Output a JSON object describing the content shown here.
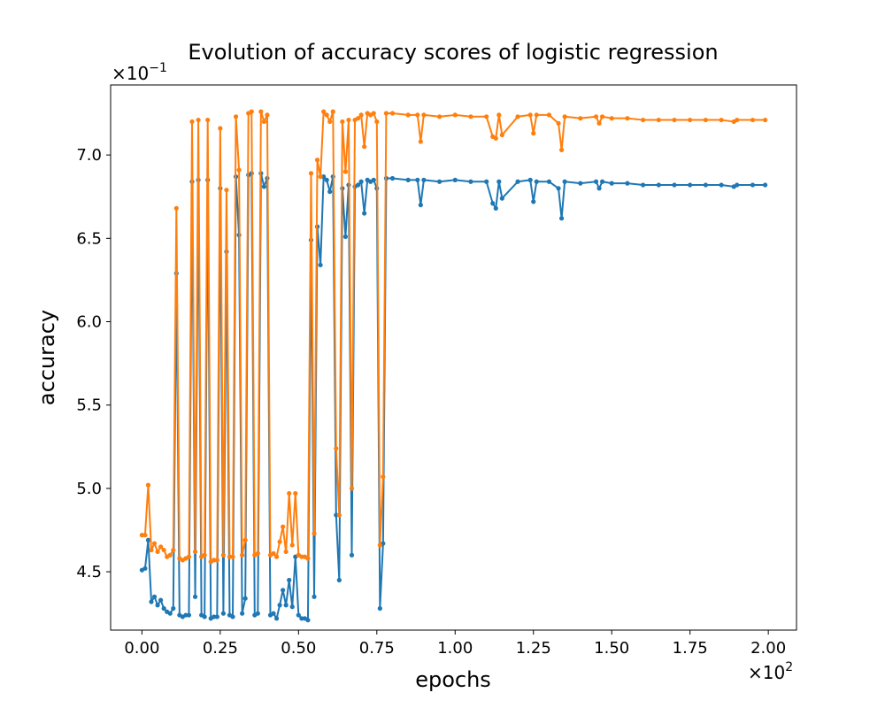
{
  "chart_data": {
    "type": "line",
    "title": "Evolution of accuracy scores of logistic regression",
    "xlabel": "epochs",
    "ylabel": "accuracy",
    "x_offset_label": "×10",
    "x_offset_exp": "2",
    "y_offset_label": "×10",
    "y_offset_exp": "−1",
    "xlim": [
      -0.1,
      2.09
    ],
    "ylim": [
      4.15,
      7.42
    ],
    "x_ticks": [
      0.0,
      0.25,
      0.5,
      0.75,
      1.0,
      1.25,
      1.5,
      1.75,
      2.0
    ],
    "x_tick_labels": [
      "0.00",
      "0.25",
      "0.50",
      "0.75",
      "1.00",
      "1.25",
      "1.50",
      "1.75",
      "2.00"
    ],
    "y_ticks": [
      4.5,
      5.0,
      5.5,
      6.0,
      6.5,
      7.0
    ],
    "y_tick_labels": [
      "4.5",
      "5.0",
      "5.5",
      "6.0",
      "6.5",
      "7.0"
    ],
    "grid": false,
    "legend": "none",
    "series": [
      {
        "color": "#1f77b4",
        "x": [
          0.0,
          0.01,
          0.02,
          0.03,
          0.04,
          0.05,
          0.06,
          0.07,
          0.08,
          0.09,
          0.1,
          0.11,
          0.12,
          0.13,
          0.14,
          0.15,
          0.16,
          0.17,
          0.18,
          0.19,
          0.2,
          0.21,
          0.22,
          0.23,
          0.24,
          0.25,
          0.26,
          0.27,
          0.28,
          0.29,
          0.3,
          0.31,
          0.32,
          0.33,
          0.34,
          0.35,
          0.36,
          0.37,
          0.38,
          0.39,
          0.4,
          0.41,
          0.42,
          0.43,
          0.44,
          0.45,
          0.46,
          0.47,
          0.48,
          0.49,
          0.5,
          0.51,
          0.52,
          0.53,
          0.54,
          0.55,
          0.56,
          0.57,
          0.58,
          0.59,
          0.6,
          0.61,
          0.62,
          0.63,
          0.64,
          0.65,
          0.66,
          0.67,
          0.68,
          0.69,
          0.7,
          0.71,
          0.72,
          0.73,
          0.74,
          0.75,
          0.76,
          0.77,
          0.78,
          0.8,
          0.85,
          0.88,
          0.89,
          0.9,
          0.95,
          1.0,
          1.05,
          1.1,
          1.12,
          1.13,
          1.14,
          1.15,
          1.2,
          1.24,
          1.25,
          1.26,
          1.3,
          1.33,
          1.34,
          1.35,
          1.4,
          1.45,
          1.46,
          1.47,
          1.5,
          1.55,
          1.6,
          1.65,
          1.7,
          1.75,
          1.8,
          1.85,
          1.89,
          1.9,
          1.95,
          1.99
        ],
        "values": [
          4.51,
          4.52,
          4.69,
          4.32,
          4.35,
          4.3,
          4.33,
          4.28,
          4.26,
          4.25,
          4.28,
          6.29,
          4.24,
          4.23,
          4.24,
          4.24,
          6.84,
          4.35,
          6.85,
          4.24,
          4.23,
          6.85,
          4.22,
          4.23,
          4.23,
          6.8,
          4.25,
          6.42,
          4.24,
          4.23,
          6.87,
          6.52,
          4.25,
          4.34,
          6.88,
          6.89,
          4.24,
          4.25,
          6.89,
          6.81,
          6.86,
          4.24,
          4.25,
          4.22,
          4.3,
          4.39,
          4.3,
          4.45,
          4.29,
          4.59,
          4.24,
          4.22,
          4.22,
          4.21,
          6.49,
          4.35,
          6.57,
          6.34,
          6.87,
          6.85,
          6.78,
          6.87,
          4.84,
          4.45,
          6.8,
          6.51,
          6.82,
          4.6,
          6.81,
          6.82,
          6.84,
          6.65,
          6.85,
          6.84,
          6.85,
          6.8,
          4.28,
          4.67,
          6.86,
          6.86,
          6.85,
          6.85,
          6.7,
          6.85,
          6.84,
          6.85,
          6.84,
          6.84,
          6.71,
          6.68,
          6.84,
          6.74,
          6.84,
          6.85,
          6.72,
          6.84,
          6.84,
          6.8,
          6.62,
          6.84,
          6.83,
          6.84,
          6.8,
          6.84,
          6.83,
          6.83,
          6.82,
          6.82,
          6.82,
          6.82,
          6.82,
          6.82,
          6.81,
          6.82,
          6.82,
          6.82
        ]
      },
      {
        "color": "#ff7f0e",
        "x": [
          0.0,
          0.01,
          0.02,
          0.03,
          0.04,
          0.05,
          0.06,
          0.07,
          0.08,
          0.09,
          0.1,
          0.11,
          0.12,
          0.13,
          0.14,
          0.15,
          0.16,
          0.17,
          0.18,
          0.19,
          0.2,
          0.21,
          0.22,
          0.23,
          0.24,
          0.25,
          0.26,
          0.27,
          0.28,
          0.29,
          0.3,
          0.31,
          0.32,
          0.33,
          0.34,
          0.35,
          0.36,
          0.37,
          0.38,
          0.39,
          0.4,
          0.41,
          0.42,
          0.43,
          0.44,
          0.45,
          0.46,
          0.47,
          0.48,
          0.49,
          0.5,
          0.51,
          0.52,
          0.53,
          0.54,
          0.55,
          0.56,
          0.57,
          0.58,
          0.59,
          0.6,
          0.61,
          0.62,
          0.63,
          0.64,
          0.65,
          0.66,
          0.67,
          0.68,
          0.69,
          0.7,
          0.71,
          0.72,
          0.73,
          0.74,
          0.75,
          0.76,
          0.77,
          0.78,
          0.8,
          0.85,
          0.88,
          0.89,
          0.9,
          0.95,
          1.0,
          1.05,
          1.1,
          1.12,
          1.13,
          1.14,
          1.15,
          1.2,
          1.24,
          1.25,
          1.26,
          1.3,
          1.33,
          1.34,
          1.35,
          1.4,
          1.45,
          1.46,
          1.47,
          1.5,
          1.55,
          1.6,
          1.65,
          1.7,
          1.75,
          1.8,
          1.85,
          1.89,
          1.9,
          1.95,
          1.99
        ],
        "values": [
          4.72,
          4.72,
          5.02,
          4.63,
          4.67,
          4.62,
          4.65,
          4.63,
          4.59,
          4.6,
          4.63,
          6.68,
          4.58,
          4.57,
          4.58,
          4.59,
          7.2,
          4.62,
          7.21,
          4.59,
          4.6,
          7.21,
          4.56,
          4.57,
          4.57,
          7.16,
          4.6,
          6.79,
          4.59,
          4.59,
          7.23,
          6.91,
          4.6,
          4.69,
          7.25,
          7.26,
          4.6,
          4.61,
          7.26,
          7.2,
          7.24,
          4.6,
          4.61,
          4.59,
          4.68,
          4.77,
          4.62,
          4.97,
          4.66,
          4.97,
          4.6,
          4.59,
          4.59,
          4.58,
          6.89,
          4.73,
          6.97,
          6.87,
          7.26,
          7.24,
          7.2,
          7.26,
          5.24,
          4.84,
          7.2,
          6.9,
          7.21,
          5.0,
          7.21,
          7.22,
          7.24,
          7.05,
          7.25,
          7.24,
          7.25,
          7.2,
          4.66,
          5.07,
          7.25,
          7.25,
          7.24,
          7.24,
          7.08,
          7.24,
          7.23,
          7.24,
          7.23,
          7.23,
          7.11,
          7.1,
          7.24,
          7.12,
          7.23,
          7.24,
          7.13,
          7.24,
          7.24,
          7.19,
          7.03,
          7.23,
          7.22,
          7.23,
          7.19,
          7.23,
          7.22,
          7.22,
          7.21,
          7.21,
          7.21,
          7.21,
          7.21,
          7.21,
          7.2,
          7.21,
          7.21,
          7.21
        ]
      }
    ]
  }
}
